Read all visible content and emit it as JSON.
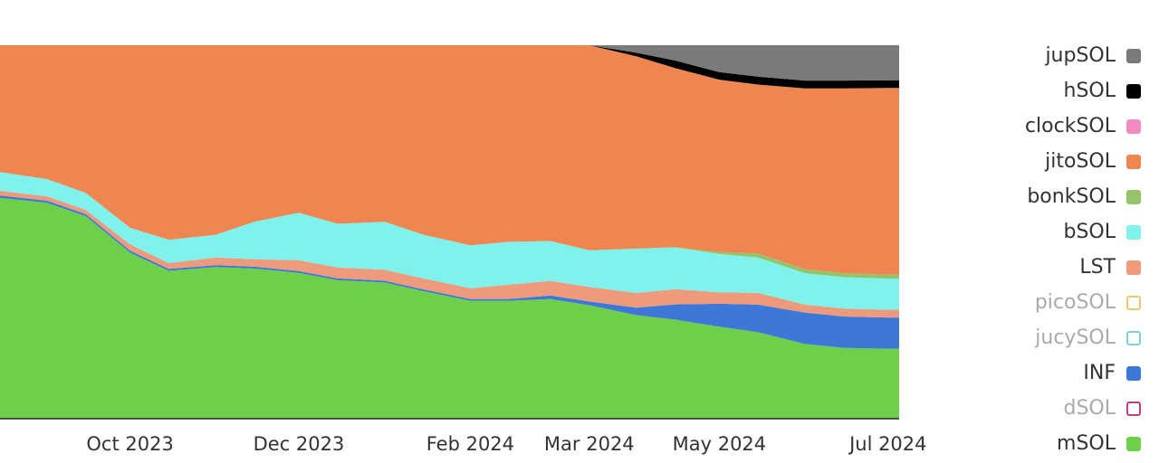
{
  "chart_data": {
    "type": "area",
    "stacking": "percent",
    "title": "",
    "xlabel": "",
    "ylabel": "",
    "ylim": [
      0,
      100
    ],
    "x_axis_labels": [
      "Oct 2023",
      "Dec 2023",
      "Feb 2024",
      "Mar 2024",
      "May 2024",
      "Jul 2024"
    ],
    "x": [
      "2023-08-15",
      "2023-09-01",
      "2023-09-15",
      "2023-10-01",
      "2023-10-15",
      "2023-11-01",
      "2023-11-15",
      "2023-12-01",
      "2023-12-15",
      "2024-01-01",
      "2024-01-15",
      "2024-02-01",
      "2024-02-15",
      "2024-03-01",
      "2024-03-15",
      "2024-04-01",
      "2024-04-15",
      "2024-05-01",
      "2024-05-15",
      "2024-06-01",
      "2024-06-15",
      "2024-07-01",
      "2024-07-05"
    ],
    "legend_position": "right",
    "series": [
      {
        "name": "mSOL",
        "color": "#6ed04a",
        "values": [
          47,
          50,
          48,
          40,
          38,
          40,
          40,
          40,
          38,
          37,
          35,
          33,
          33,
          33,
          31,
          28,
          26,
          24,
          22,
          19,
          18,
          18,
          18
        ]
      },
      {
        "name": "dSOL",
        "color": "#c04080",
        "hidden": true,
        "values": [
          0,
          0,
          0,
          0,
          0,
          0,
          0,
          0,
          0,
          0,
          0,
          0,
          0,
          0,
          0,
          0,
          0,
          0,
          0,
          0,
          0,
          0,
          0
        ]
      },
      {
        "name": "INF",
        "color": "#3d78d8",
        "values": [
          0.5,
          0.5,
          0.5,
          0.5,
          0.5,
          0.5,
          0.5,
          0.5,
          0.5,
          0.5,
          0.5,
          0.5,
          0.5,
          1,
          1,
          2,
          4,
          6,
          7,
          8,
          8,
          8,
          8
        ]
      },
      {
        "name": "jucySOL",
        "color": "#7fd0d8",
        "hidden": true,
        "values": [
          0,
          0,
          0,
          0,
          0,
          0,
          0,
          0,
          0,
          0,
          0,
          0,
          0,
          0,
          0,
          0,
          0,
          0,
          0,
          0,
          0,
          0,
          0
        ]
      },
      {
        "name": "picoSOL",
        "color": "#e8c870",
        "hidden": true,
        "values": [
          0,
          0,
          0,
          0,
          0,
          0,
          0,
          0,
          0,
          0,
          0,
          0,
          0,
          0,
          0,
          0,
          0,
          0,
          0,
          0,
          0,
          0,
          0
        ]
      },
      {
        "name": "LST",
        "color": "#ee9a7c",
        "values": [
          1,
          1,
          1,
          1.5,
          1.5,
          2,
          2,
          3,
          3,
          3,
          3,
          3,
          4,
          4,
          4,
          4,
          4,
          3,
          3,
          2,
          2,
          2,
          2
        ]
      },
      {
        "name": "bSOL",
        "color": "#7ff2ec",
        "values": [
          4,
          4,
          4,
          4,
          6,
          6,
          10,
          13,
          12,
          13,
          12,
          12,
          12,
          11,
          10,
          12,
          11,
          10,
          9,
          8,
          8,
          8,
          8
        ]
      },
      {
        "name": "bonkSOL",
        "color": "#93c46a",
        "values": [
          0,
          0,
          0,
          0,
          0,
          0,
          0,
          0,
          0,
          0,
          0,
          0,
          0,
          0,
          0,
          0,
          0,
          0.5,
          1,
          1,
          1,
          1,
          1
        ]
      },
      {
        "name": "jitoSOL",
        "color": "#ef8550",
        "values": [
          27,
          31,
          35,
          44,
          50,
          50,
          47,
          46,
          49,
          48,
          52,
          56,
          55,
          54,
          56,
          52,
          47,
          45,
          43,
          46,
          47,
          48,
          48
        ]
      },
      {
        "name": "clockSOL",
        "color": "#f08cbf",
        "values": [
          0,
          0,
          0,
          0,
          0,
          0,
          0,
          0,
          0,
          0,
          0,
          0,
          0,
          0,
          0,
          0,
          0,
          0,
          0,
          0,
          0,
          0,
          0
        ]
      },
      {
        "name": "hSOL",
        "color": "#000000",
        "values": [
          0,
          0,
          0,
          0,
          0,
          0,
          0,
          0,
          0,
          0,
          0,
          0,
          0,
          0,
          0,
          1,
          2,
          2,
          2,
          2,
          2,
          2,
          2
        ]
      },
      {
        "name": "jupSOL",
        "color": "#7a7a7a",
        "values": [
          0,
          0,
          0,
          0,
          0,
          0,
          0,
          0,
          0,
          0,
          0,
          0,
          0,
          0,
          0,
          2,
          4,
          7,
          8,
          9,
          9,
          9,
          9
        ]
      }
    ]
  },
  "legend": {
    "items": [
      {
        "label": "jupSOL",
        "color": "#7a7a7a",
        "active": true
      },
      {
        "label": "hSOL",
        "color": "#000000",
        "active": true
      },
      {
        "label": "clockSOL",
        "color": "#f08cbf",
        "active": true
      },
      {
        "label": "jitoSOL",
        "color": "#ef8550",
        "active": true
      },
      {
        "label": "bonkSOL",
        "color": "#93c46a",
        "active": true
      },
      {
        "label": "bSOL",
        "color": "#7ff2ec",
        "active": true
      },
      {
        "label": "LST",
        "color": "#ee9a7c",
        "active": true
      },
      {
        "label": "picoSOL",
        "color": "#e8c870",
        "active": false
      },
      {
        "label": "jucySOL",
        "color": "#7fd0d8",
        "active": false
      },
      {
        "label": "INF",
        "color": "#3d78d8",
        "active": true
      },
      {
        "label": "dSOL",
        "color": "#c04080",
        "active": false
      },
      {
        "label": "mSOL",
        "color": "#6ed04a",
        "active": true
      }
    ]
  }
}
